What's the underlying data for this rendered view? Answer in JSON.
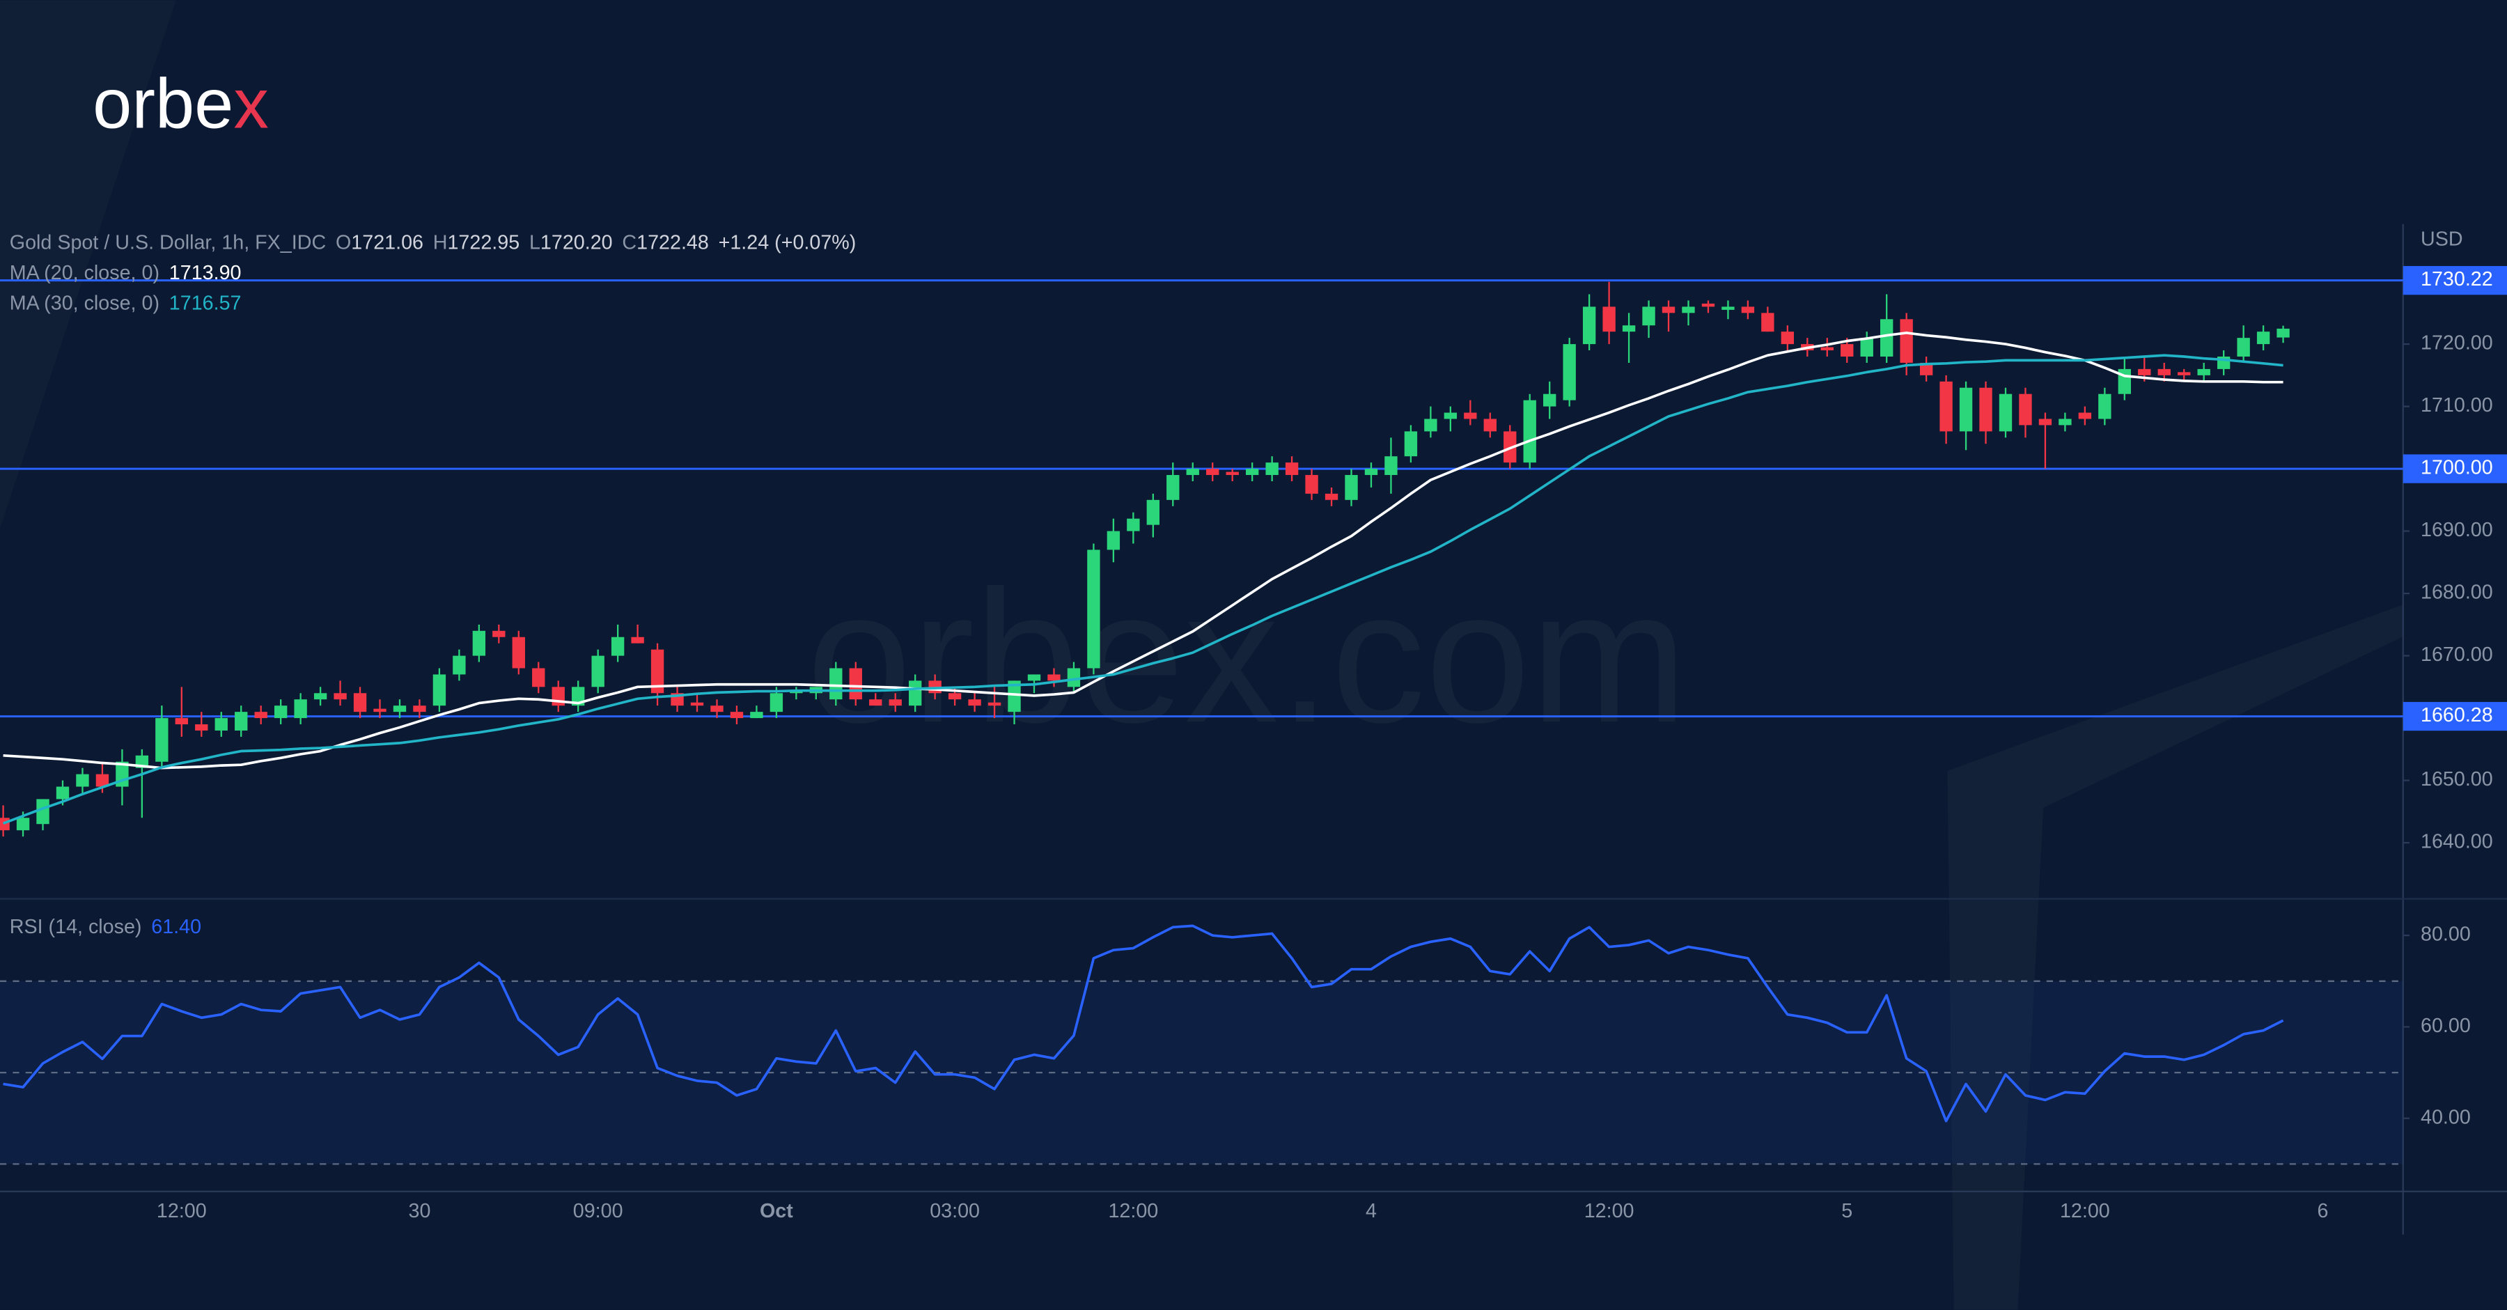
{
  "logo": {
    "text": "orbe",
    "accent": "x"
  },
  "watermark": "orbex.com",
  "chart_data": [
    {
      "type": "candlestick",
      "title": "Gold Spot / U.S. Dollar, 1h, FX_IDC",
      "ohlc_labels": [
        {
          "key": "O",
          "value": "1721.06"
        },
        {
          "key": "H",
          "value": "1722.95"
        },
        {
          "key": "L",
          "value": "1720.20"
        },
        {
          "key": "C",
          "value": "1722.48"
        }
      ],
      "change": "+1.24 (+0.07%)",
      "y_unit": "USD",
      "up_color": "#2bd67b",
      "down_color": "#f23645",
      "categories": [
        null,
        null,
        null,
        null,
        null,
        null,
        null,
        null,
        null,
        "12:00",
        null,
        null,
        null,
        null,
        null,
        null,
        null,
        null,
        null,
        null,
        null,
        "30",
        null,
        null,
        null,
        null,
        null,
        null,
        null,
        null,
        "09:00",
        null,
        null,
        null,
        null,
        null,
        null,
        null,
        null,
        "Oct",
        null,
        null,
        null,
        null,
        null,
        null,
        null,
        null,
        "03:00",
        null,
        null,
        null,
        null,
        null,
        null,
        null,
        null,
        "12:00",
        null,
        null,
        null,
        null,
        null,
        null,
        null,
        null,
        null,
        null,
        null,
        "4",
        null,
        null,
        null,
        null,
        null,
        null,
        null,
        null,
        null,
        null,
        null,
        "12:00",
        null,
        null,
        null,
        null,
        null,
        null,
        null,
        null,
        null,
        null,
        null,
        "5",
        null,
        null,
        null,
        null,
        null,
        null,
        null,
        null,
        null,
        null,
        null,
        "12:00",
        null,
        null,
        null,
        null,
        null,
        null,
        null,
        null,
        null,
        null,
        null,
        "6"
      ],
      "open": [
        1644,
        1642,
        1643,
        1647,
        1649,
        1651,
        1649,
        1652,
        1653,
        1660,
        1659,
        1658,
        1658,
        1661,
        1660,
        1660,
        1663,
        1664,
        1664,
        1661.5,
        1661,
        1662,
        1662,
        1667,
        1670,
        1674,
        1673,
        1668,
        1665,
        1662,
        1665,
        1670,
        1673,
        1671,
        1664,
        1662.5,
        1662,
        1661,
        1660,
        1661,
        1664,
        1664,
        1663,
        1668,
        1663,
        1663,
        1662,
        1666,
        1664,
        1663,
        1662.5,
        1661,
        1666,
        1667,
        1665,
        1668,
        1687,
        1690,
        1691,
        1695,
        1699,
        1700,
        1699.5,
        1699,
        1699,
        1701,
        1699,
        1696,
        1695,
        1699,
        1699,
        1702,
        1706,
        1708,
        1709,
        1708,
        1706,
        1701,
        1710,
        1711,
        1720,
        1726,
        1722,
        1723,
        1726,
        1725,
        1726.5,
        1725.5,
        1726,
        1725,
        1722,
        1720,
        1719.5,
        1720,
        1718,
        1718,
        1724,
        1717,
        1714,
        1706,
        1713,
        1706,
        1712,
        1708,
        1707,
        1709,
        1708,
        1712,
        1716,
        1716,
        1715.5,
        1715,
        1716,
        1718,
        1720,
        1721.06,
        null,
        null
      ],
      "high": [
        1646,
        1645,
        1647,
        1650,
        1652,
        1653,
        1655,
        1655,
        1662,
        1665,
        1661,
        1661,
        1662,
        1662,
        1663,
        1664,
        1665,
        1666,
        1665,
        1663,
        1663,
        1663,
        1668,
        1671,
        1675,
        1675,
        1674,
        1669,
        1666,
        1666,
        1671,
        1675,
        1675,
        1672,
        1665,
        1664,
        1663,
        1662,
        1662,
        1665,
        1665,
        1665,
        1669,
        1669,
        1664,
        1664,
        1667,
        1667,
        1665,
        1664,
        1665,
        1666,
        1667,
        1668,
        1669,
        1688,
        1692,
        1693,
        1696,
        1701,
        1701,
        1701,
        1700,
        1701,
        1702,
        1702,
        1700,
        1697,
        1700,
        1701,
        1705,
        1707,
        1710,
        1710,
        1711,
        1709,
        1707,
        1712,
        1714,
        1721,
        1728,
        1730,
        1725,
        1727,
        1727,
        1727,
        1727,
        1727,
        1727,
        1726,
        1723,
        1721,
        1721,
        1721,
        1722,
        1728,
        1725,
        1718,
        1715,
        1714,
        1714,
        1713,
        1713,
        1709,
        1709,
        1710,
        1713,
        1718,
        1718,
        1717,
        1716,
        1717,
        1719,
        1723,
        1723,
        1722.95,
        null,
        null
      ],
      "low": [
        1641,
        1641,
        1642,
        1646,
        1648,
        1648,
        1646,
        1644,
        1652,
        1657,
        1657,
        1657,
        1657,
        1659,
        1659,
        1659,
        1662,
        1662,
        1660,
        1660,
        1660,
        1660,
        1661,
        1666,
        1669,
        1672,
        1667,
        1664,
        1661,
        1661,
        1664,
        1669,
        1672,
        1662,
        1661,
        1661,
        1660,
        1659,
        1660,
        1660,
        1663,
        1663,
        1662,
        1662,
        1662,
        1661,
        1661,
        1663,
        1662,
        1661,
        1660,
        1659,
        1664,
        1665,
        1664,
        1667,
        1685,
        1688,
        1689,
        1694,
        1698,
        1698,
        1698,
        1698,
        1698,
        1698,
        1695,
        1694,
        1694,
        1697,
        1696,
        1701,
        1705,
        1706,
        1707,
        1705,
        1700,
        1700,
        1708,
        1710,
        1719,
        1720,
        1717,
        1721,
        1722,
        1723,
        1725,
        1724,
        1724,
        1722,
        1719,
        1718,
        1718,
        1717,
        1717,
        1717,
        1715,
        1714,
        1704,
        1703,
        1704,
        1705,
        1705,
        1700,
        1706,
        1707,
        1707,
        1711,
        1714,
        1714,
        1714,
        1714,
        1715,
        1717,
        1719,
        1720.2,
        null,
        null
      ],
      "close": [
        1642,
        1644,
        1647,
        1649,
        1651,
        1649,
        1653,
        1654,
        1660,
        1659,
        1658,
        1660,
        1661,
        1660,
        1662,
        1663,
        1664,
        1663,
        1661,
        1661,
        1662,
        1661,
        1667,
        1670,
        1674,
        1673,
        1668,
        1665,
        1662,
        1665,
        1670,
        1673,
        1672,
        1664,
        1662,
        1662,
        1661,
        1660,
        1661,
        1664,
        1664.5,
        1665,
        1668,
        1663,
        1662,
        1662,
        1666,
        1664,
        1663,
        1662,
        1662,
        1666,
        1667,
        1666,
        1668,
        1687,
        1690,
        1692,
        1695,
        1699,
        1700,
        1699,
        1699,
        1700,
        1701,
        1699,
        1696,
        1695,
        1699,
        1700,
        1702,
        1706,
        1708,
        1709,
        1708,
        1706,
        1701,
        1711,
        1712,
        1720,
        1726,
        1722,
        1723,
        1726,
        1725,
        1726,
        1726,
        1726,
        1725,
        1722,
        1720,
        1719,
        1719,
        1718,
        1721,
        1724,
        1717,
        1715,
        1706,
        1713,
        1706,
        1712,
        1707,
        1707,
        1708,
        1708,
        1712,
        1716,
        1715,
        1715,
        1715,
        1716,
        1718,
        1721,
        1722,
        1722.48,
        null,
        null
      ],
      "series": [
        {
          "name": "MA (20, close, 0)",
          "color": "#ffffff",
          "legend_value": "1713.90",
          "values": [
            1654.0,
            1653.8,
            1653.6,
            1653.4,
            1653.1,
            1652.8,
            1652.6,
            1652.3,
            1652.0,
            1652.1,
            1652.2,
            1652.4,
            1652.5,
            1653.1,
            1653.6,
            1654.2,
            1654.7,
            1655.7,
            1656.6,
            1657.6,
            1658.5,
            1659.5,
            1660.5,
            1661.4,
            1662.4,
            1662.8,
            1663.1,
            1663.0,
            1662.7,
            1662.4,
            1663.3,
            1664.1,
            1665.0,
            1665.1,
            1665.2,
            1665.3,
            1665.4,
            1665.4,
            1665.4,
            1665.4,
            1665.4,
            1665.3,
            1665.2,
            1665.1,
            1665.0,
            1664.9,
            1664.7,
            1664.6,
            1664.4,
            1664.2,
            1664.0,
            1663.8,
            1663.6,
            1663.8,
            1664.1,
            1665.8,
            1667.5,
            1669.1,
            1670.7,
            1672.3,
            1673.9,
            1676.0,
            1678.1,
            1680.2,
            1682.3,
            1684.0,
            1685.7,
            1687.5,
            1689.2,
            1691.5,
            1693.7,
            1696.0,
            1698.2,
            1699.5,
            1700.8,
            1702.0,
            1703.3,
            1704.5,
            1705.6,
            1706.8,
            1707.9,
            1709.0,
            1710.2,
            1711.3,
            1712.5,
            1713.6,
            1714.8,
            1715.9,
            1717.1,
            1718.2,
            1718.8,
            1719.4,
            1719.9,
            1720.5,
            1720.9,
            1721.4,
            1721.8,
            1721.4,
            1721.1,
            1720.7,
            1720.4,
            1720.0,
            1719.4,
            1718.7,
            1718.1,
            1717.4,
            1716.2,
            1714.9,
            1714.6,
            1714.3,
            1714.1,
            1714.0,
            1714.0,
            1714.0,
            1713.9,
            1713.9,
            null,
            null
          ]
        },
        {
          "name": "MA (30, close, 0)",
          "color": "#22b5c8",
          "legend_value": "1716.57",
          "values": [
            1643.1,
            1644.3,
            1645.5,
            1646.6,
            1647.8,
            1648.9,
            1650.0,
            1651.0,
            1652.1,
            1652.8,
            1653.4,
            1654.1,
            1654.7,
            1654.8,
            1654.9,
            1655.1,
            1655.2,
            1655.4,
            1655.6,
            1655.8,
            1656.0,
            1656.4,
            1656.9,
            1657.3,
            1657.7,
            1658.2,
            1658.8,
            1659.3,
            1659.8,
            1660.6,
            1661.5,
            1662.3,
            1663.1,
            1663.4,
            1663.6,
            1663.9,
            1664.1,
            1664.2,
            1664.3,
            1664.3,
            1664.4,
            1664.4,
            1664.4,
            1664.4,
            1664.4,
            1664.5,
            1664.7,
            1664.8,
            1664.9,
            1665.0,
            1665.2,
            1665.3,
            1665.4,
            1665.8,
            1666.2,
            1666.6,
            1667.0,
            1667.9,
            1668.8,
            1669.6,
            1670.5,
            1672.0,
            1673.5,
            1674.9,
            1676.4,
            1677.7,
            1679.0,
            1680.3,
            1681.6,
            1682.9,
            1684.2,
            1685.4,
            1686.7,
            1688.4,
            1690.2,
            1691.9,
            1693.6,
            1695.7,
            1697.8,
            1699.9,
            1702.0,
            1703.6,
            1705.2,
            1706.8,
            1708.4,
            1709.4,
            1710.4,
            1711.3,
            1712.3,
            1712.8,
            1713.3,
            1713.9,
            1714.4,
            1714.9,
            1715.5,
            1716.0,
            1716.6,
            1716.8,
            1716.9,
            1717.1,
            1717.2,
            1717.4,
            1717.4,
            1717.4,
            1717.4,
            1717.4,
            1717.6,
            1717.8,
            1718.0,
            1718.2,
            1718.0,
            1717.7,
            1717.5,
            1717.2,
            1716.9,
            1716.6,
            null,
            null
          ]
        }
      ],
      "levels": [
        {
          "value": 1730.22,
          "label": "1730.22"
        },
        {
          "value": 1700,
          "label": "1700.00"
        },
        {
          "value": 1660.28,
          "label": "1660.28"
        }
      ],
      "level_color": "#2962ff",
      "ylim": [
        1631,
        1739
      ],
      "yticks": [
        {
          "value": 1640,
          "label": "1640.00"
        },
        {
          "value": 1650,
          "label": "1650.00"
        },
        {
          "value": 1660,
          "label": "1660.00"
        },
        {
          "value": 1670,
          "label": "1670.00"
        },
        {
          "value": 1680,
          "label": "1680.00"
        },
        {
          "value": 1690,
          "label": "1690.00"
        },
        {
          "value": 1700,
          "label": "1700.00"
        },
        {
          "value": 1710,
          "label": "1710.00"
        },
        {
          "value": 1720,
          "label": "1720.00"
        }
      ]
    },
    {
      "type": "line",
      "series": [
        {
          "name": "RSI (14, close)",
          "color": "#2962ff",
          "legend_value": "61.40",
          "values": [
            47.5,
            46.8,
            52,
            54.5,
            56.7,
            53,
            58,
            58,
            65,
            63.4,
            62,
            62.7,
            65,
            63.7,
            63.4,
            67.3,
            68,
            68.7,
            62,
            63.7,
            61.6,
            62.7,
            68.7,
            70.8,
            74,
            70.8,
            61.6,
            58,
            53.9,
            55.6,
            62.7,
            66.2,
            62.7,
            51,
            49.3,
            48.2,
            47.8,
            45,
            46.4,
            53.1,
            52.4,
            52,
            59.2,
            50.3,
            51,
            47.8,
            54.6,
            49.6,
            49.6,
            48.9,
            46.4,
            52.8,
            53.9,
            53.1,
            58.1,
            75,
            76.8,
            77.2,
            79.6,
            81.8,
            82.1,
            80,
            79.6,
            80,
            80.4,
            75,
            68.7,
            69.4,
            72.6,
            72.6,
            75.4,
            77.5,
            78.6,
            79.3,
            77.5,
            72.2,
            71.5,
            76.5,
            72.2,
            79.3,
            81.8,
            77.5,
            77.9,
            78.9,
            76.1,
            77.5,
            76.8,
            75.8,
            75,
            68.7,
            62.7,
            62,
            60.9,
            58.8,
            58.8,
            66.9,
            53.1,
            50.3,
            39.4,
            47.5,
            41.5,
            49.6,
            45,
            44,
            45.7,
            45.4,
            50.3,
            54.2,
            53.5,
            53.5,
            52.8,
            53.9,
            56,
            58.4,
            59.2,
            61.4,
            null,
            null
          ]
        }
      ],
      "levels": [
        70,
        50,
        30
      ],
      "ylim": [
        24,
        88
      ],
      "yticks": [
        {
          "value": 40,
          "label": "40.00"
        },
        {
          "value": 60,
          "label": "60.00"
        },
        {
          "value": 80,
          "label": "80.00"
        }
      ]
    }
  ]
}
